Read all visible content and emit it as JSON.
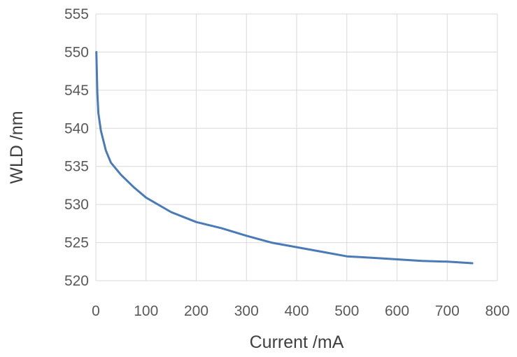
{
  "chart_data": {
    "type": "line",
    "title": "",
    "xlabel": "Current /mA",
    "ylabel": "WLD /nm",
    "xlim": [
      0,
      800
    ],
    "ylim": [
      520,
      555
    ],
    "xticks": [
      0,
      100,
      200,
      300,
      400,
      500,
      600,
      700,
      800
    ],
    "yticks": [
      520,
      525,
      530,
      535,
      540,
      545,
      550,
      555
    ],
    "grid": true,
    "legend": "none",
    "series": [
      {
        "color": "#4a7ab7",
        "x": [
          1,
          3,
          5,
          10,
          20,
          30,
          50,
          75,
          100,
          150,
          200,
          250,
          300,
          350,
          400,
          450,
          500,
          550,
          600,
          650,
          700,
          750
        ],
        "y": [
          550.0,
          544.5,
          542.0,
          539.7,
          537.1,
          535.5,
          533.9,
          532.3,
          530.9,
          529.0,
          527.7,
          526.9,
          525.9,
          525.0,
          524.4,
          523.8,
          523.2,
          523.0,
          522.8,
          522.6,
          522.5,
          522.3
        ]
      }
    ]
  }
}
